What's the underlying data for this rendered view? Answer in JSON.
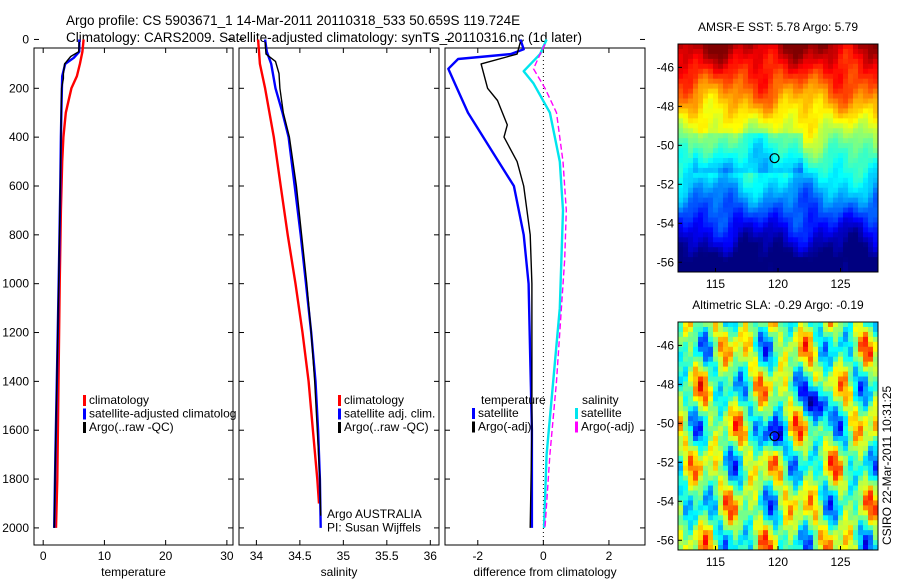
{
  "header": {
    "line1": "Argo profile: CS 5903671_1 14-Mar-2011 20110318_533 50.659S 119.724E",
    "line2": "Climatology: CARS2009. Satellite-adjusted climatology: synTS_20110316.nc (1d later)"
  },
  "colors": {
    "climatology": "#ff0000",
    "satellite": "#0000ff",
    "argo": "#000000",
    "sal_satellite": "#00e5ee",
    "sal_argo": "#ff00ff"
  },
  "chart_data": [
    {
      "type": "line",
      "name": "temperature",
      "xlabel": "temperature",
      "ylabel": "",
      "xlim": [
        -1.5,
        31
      ],
      "ylim": [
        0,
        2050
      ],
      "y_inverted": true,
      "xticks": [
        "0",
        "10",
        "20",
        "30"
      ],
      "xtick_values": [
        0,
        10,
        20,
        30
      ],
      "yticks": [
        "0",
        "200",
        "400",
        "600",
        "800",
        "1000",
        "1200",
        "1400",
        "1600",
        "1800",
        "2000"
      ],
      "ytick_values": [
        0,
        200,
        400,
        600,
        800,
        1000,
        1200,
        1400,
        1600,
        1800,
        2000
      ],
      "legend": [
        "climatology",
        "satellite-adjusted climatolog",
        "Argo(..raw -QC)"
      ],
      "series": [
        {
          "name": "climatology",
          "color": "#ff0000",
          "points": [
            [
              6.6,
              0
            ],
            [
              6.4,
              50
            ],
            [
              6.0,
              100
            ],
            [
              5.5,
              150
            ],
            [
              4.6,
              200
            ],
            [
              3.7,
              300
            ],
            [
              3.3,
              400
            ],
            [
              3.1,
              500
            ],
            [
              2.9,
              700
            ],
            [
              2.7,
              1000
            ],
            [
              2.5,
              1400
            ],
            [
              2.3,
              1800
            ],
            [
              2.1,
              2000
            ]
          ]
        },
        {
          "name": "satellite-adjusted climatology",
          "color": "#0000ff",
          "points": [
            [
              5.9,
              0
            ],
            [
              5.9,
              50
            ],
            [
              5.0,
              75
            ],
            [
              3.6,
              100
            ],
            [
              3.1,
              150
            ],
            [
              3.0,
              250
            ],
            [
              2.9,
              400
            ],
            [
              2.8,
              600
            ],
            [
              2.6,
              900
            ],
            [
              2.3,
              1300
            ],
            [
              2.0,
              1700
            ],
            [
              1.8,
              2000
            ]
          ]
        },
        {
          "name": "Argo(..raw -QC)",
          "color": "#000000",
          "points": [
            [
              5.9,
              10
            ],
            [
              5.8,
              50
            ],
            [
              4.5,
              70
            ],
            [
              3.5,
              100
            ],
            [
              3.3,
              140
            ],
            [
              3.3,
              160
            ],
            [
              3.0,
              200
            ],
            [
              2.9,
              400
            ],
            [
              2.8,
              600
            ],
            [
              2.6,
              900
            ],
            [
              2.3,
              1300
            ],
            [
              2.0,
              1700
            ],
            [
              1.8,
              2000
            ]
          ]
        }
      ]
    },
    {
      "type": "line",
      "name": "salinity",
      "xlabel": "salinity",
      "xlim": [
        33.8,
        36.1
      ],
      "ylim": [
        0,
        2050
      ],
      "y_inverted": true,
      "xticks": [
        "34",
        "34.5",
        "35",
        "35.5",
        "36"
      ],
      "xtick_values": [
        34,
        34.5,
        35,
        35.5,
        36
      ],
      "legend": [
        "climatology",
        "satellite adj. clim.",
        "Argo(..raw -QC)"
      ],
      "annotation": [
        "Argo AUSTRALIA",
        "PI: Susan Wijffels"
      ],
      "series": [
        {
          "name": "climatology",
          "color": "#ff0000",
          "points": [
            [
              34.02,
              0
            ],
            [
              34.04,
              100
            ],
            [
              34.1,
              200
            ],
            [
              34.2,
              400
            ],
            [
              34.28,
              600
            ],
            [
              34.36,
              800
            ],
            [
              34.45,
              1000
            ],
            [
              34.53,
              1200
            ],
            [
              34.6,
              1400
            ],
            [
              34.65,
              1600
            ],
            [
              34.7,
              1800
            ],
            [
              34.72,
              1900
            ]
          ]
        },
        {
          "name": "satellite adj. clim.",
          "color": "#0000ff",
          "points": [
            [
              34.1,
              0
            ],
            [
              34.12,
              50
            ],
            [
              34.17,
              100
            ],
            [
              34.22,
              200
            ],
            [
              34.3,
              300
            ],
            [
              34.37,
              400
            ],
            [
              34.44,
              600
            ],
            [
              34.51,
              800
            ],
            [
              34.57,
              1000
            ],
            [
              34.63,
              1200
            ],
            [
              34.68,
              1400
            ],
            [
              34.71,
              1600
            ],
            [
              34.73,
              1800
            ],
            [
              34.74,
              2000
            ]
          ]
        },
        {
          "name": "Argo(..raw -QC)",
          "color": "#000000",
          "points": [
            [
              34.1,
              10
            ],
            [
              34.11,
              60
            ],
            [
              34.22,
              90
            ],
            [
              34.26,
              140
            ],
            [
              34.27,
              200
            ],
            [
              34.31,
              300
            ],
            [
              34.38,
              400
            ],
            [
              34.46,
              600
            ],
            [
              34.52,
              800
            ],
            [
              34.58,
              1000
            ],
            [
              34.63,
              1200
            ],
            [
              34.67,
              1400
            ],
            [
              34.7,
              1600
            ],
            [
              34.73,
              1800
            ],
            [
              34.74,
              1950
            ]
          ]
        }
      ]
    },
    {
      "type": "line",
      "name": "difference",
      "xlabel": "difference from climatology",
      "xlim": [
        -3,
        3.1
      ],
      "ylim": [
        0,
        2050
      ],
      "y_inverted": true,
      "xticks": [
        "-2",
        "0",
        "2"
      ],
      "xtick_values": [
        -2,
        0,
        2
      ],
      "legend_left_title": "temperature",
      "legend_left": [
        "satellite",
        "Argo(-adj)"
      ],
      "legend_right_title": "salinity",
      "legend_right": [
        "satellite",
        "Argo(-adj)"
      ],
      "series": [
        {
          "name": "temperature satellite",
          "color": "#0000ff",
          "points": [
            [
              -0.7,
              0
            ],
            [
              -0.6,
              40
            ],
            [
              -1.0,
              60
            ],
            [
              -2.6,
              80
            ],
            [
              -2.9,
              120
            ],
            [
              -2.7,
              180
            ],
            [
              -2.3,
              300
            ],
            [
              -1.6,
              450
            ],
            [
              -0.9,
              600
            ],
            [
              -0.6,
              800
            ],
            [
              -0.45,
              1000
            ],
            [
              -0.4,
              1300
            ],
            [
              -0.35,
              1600
            ],
            [
              -0.35,
              2000
            ]
          ]
        },
        {
          "name": "temperature Argo(-adj)",
          "color": "#000000",
          "points": [
            [
              -0.7,
              10
            ],
            [
              -0.8,
              60
            ],
            [
              -1.9,
              100
            ],
            [
              -1.7,
              200
            ],
            [
              -1.4,
              250
            ],
            [
              -1.1,
              350
            ],
            [
              -1.2,
              400
            ],
            [
              -0.8,
              500
            ],
            [
              -0.6,
              600
            ],
            [
              -0.4,
              800
            ],
            [
              -0.35,
              1000
            ],
            [
              -0.35,
              1300
            ],
            [
              -0.35,
              1600
            ],
            [
              -0.4,
              2000
            ]
          ]
        },
        {
          "name": "salinity satellite",
          "color": "#00e5ee",
          "points": [
            [
              0.1,
              0
            ],
            [
              -0.1,
              60
            ],
            [
              -0.6,
              130
            ],
            [
              -0.3,
              180
            ],
            [
              0.2,
              300
            ],
            [
              0.5,
              500
            ],
            [
              0.6,
              700
            ],
            [
              0.55,
              900
            ],
            [
              0.5,
              1100
            ],
            [
              0.3,
              1400
            ],
            [
              0.1,
              1700
            ],
            [
              0.02,
              2000
            ]
          ]
        },
        {
          "name": "salinity Argo(-adj)",
          "color": "#ff00ff",
          "points": [
            [
              0.05,
              20
            ],
            [
              -0.1,
              60
            ],
            [
              -0.3,
              120
            ],
            [
              0.05,
              200
            ],
            [
              0.4,
              300
            ],
            [
              0.6,
              500
            ],
            [
              0.7,
              700
            ],
            [
              0.65,
              900
            ],
            [
              0.55,
              1100
            ],
            [
              0.4,
              1400
            ],
            [
              0.2,
              1700
            ],
            [
              0.05,
              2000
            ]
          ]
        }
      ]
    },
    {
      "type": "heatmap",
      "name": "sst-map",
      "title": "AMSR-E SST: 5.78 Argo: 5.79",
      "xlim": [
        112,
        128
      ],
      "ylim": [
        -56.5,
        -44.8
      ],
      "xticks": [
        "115",
        "120",
        "125"
      ],
      "xtick_values": [
        115,
        120,
        125
      ],
      "yticks": [
        "-46",
        "-48",
        "-50",
        "-52",
        "-54",
        "-56"
      ],
      "ytick_values": [
        -46,
        -48,
        -50,
        -52,
        -54,
        -56
      ],
      "marker": [
        119.724,
        -50.659
      ]
    },
    {
      "type": "heatmap",
      "name": "sla-map",
      "title": "Altimetric SLA: -0.29 Argo: -0.19",
      "xlim": [
        112,
        128
      ],
      "ylim": [
        -56.5,
        -44.8
      ],
      "xticks": [
        "115",
        "120",
        "125"
      ],
      "xtick_values": [
        115,
        120,
        125
      ],
      "yticks": [
        "-46",
        "-48",
        "-50",
        "-52",
        "-54",
        "-56"
      ],
      "ytick_values": [
        -46,
        -48,
        -50,
        -52,
        -54,
        -56
      ],
      "marker": [
        119.724,
        -50.659
      ]
    }
  ],
  "footer": {
    "stamp": "CSIRO 22-Mar-2011 10:31:25"
  }
}
